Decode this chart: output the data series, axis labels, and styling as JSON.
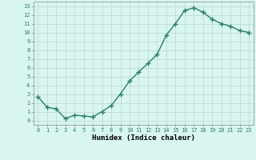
{
  "x": [
    0,
    1,
    2,
    3,
    4,
    5,
    6,
    7,
    8,
    9,
    10,
    11,
    12,
    13,
    14,
    15,
    16,
    17,
    18,
    19,
    20,
    21,
    22,
    23
  ],
  "y": [
    2.7,
    1.5,
    1.3,
    0.2,
    0.6,
    0.5,
    0.4,
    1.0,
    1.7,
    3.0,
    4.5,
    5.5,
    6.5,
    7.5,
    9.7,
    11.0,
    12.5,
    12.8,
    12.3,
    11.5,
    11.0,
    10.7,
    10.2,
    10.0
  ],
  "line_color": "#2e7d6e",
  "marker": "+",
  "marker_size": 4,
  "bg_color": "#d8f5f0",
  "grid_color": "#b8d8d0",
  "xlabel": "Humidex (Indice chaleur)",
  "xlim": [
    -0.5,
    23.5
  ],
  "ylim": [
    -0.5,
    13.5
  ],
  "yticks": [
    0,
    1,
    2,
    3,
    4,
    5,
    6,
    7,
    8,
    9,
    10,
    11,
    12,
    13
  ],
  "xticks": [
    0,
    1,
    2,
    3,
    4,
    5,
    6,
    7,
    8,
    9,
    10,
    11,
    12,
    13,
    14,
    15,
    16,
    17,
    18,
    19,
    20,
    21,
    22,
    23
  ],
  "tick_fontsize": 5.0,
  "xlabel_fontsize": 6.5,
  "line_width": 1.0
}
